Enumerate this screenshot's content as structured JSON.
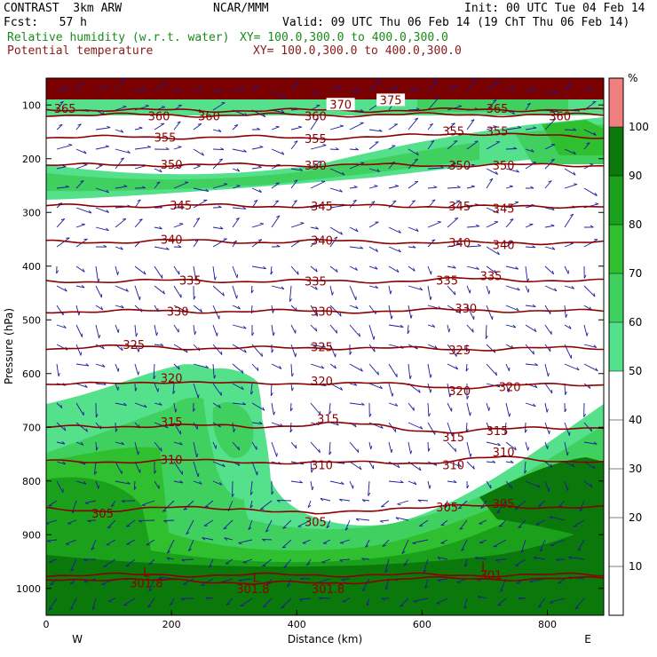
{
  "header": {
    "model": "CONTRAST  3km ARW",
    "org": "NCAR/MMM",
    "init": "Init: 00 UTC Tue 04 Feb 14",
    "fcst": "Fcst:   57 h",
    "valid": "Valid: 09 UTC Thu 06 Feb 14 (19 ChT Thu 06 Feb 14)",
    "field1": "Relative humidity (w.r.t. water)",
    "field1_xy": "XY= 100.0,300.0 to 400.0,300.0",
    "field2": "Potential temperature",
    "field2_xy": "XY= 100.0,300.0 to 400.0,300.0"
  },
  "chart_data": {
    "type": "heatmap",
    "title": "",
    "xlabel": "Distance (km)",
    "ylabel": "Pressure (hPa)",
    "xlim": [
      0,
      890
    ],
    "ylim": [
      1050,
      50
    ],
    "x_ticks": [
      "0",
      "200",
      "400",
      "600",
      "800"
    ],
    "x_tick_values": [
      0,
      200,
      400,
      600,
      800
    ],
    "y_ticks": [
      "100",
      "200",
      "300",
      "400",
      "500",
      "600",
      "700",
      "800",
      "900",
      "1000"
    ],
    "y_tick_values": [
      100,
      200,
      300,
      400,
      500,
      600,
      700,
      800,
      900,
      1000
    ],
    "x_end_labels": {
      "left": "W",
      "right": "E"
    },
    "colorbar": {
      "unit": "%",
      "labels": [
        "10",
        "20",
        "30",
        "40",
        "50",
        "60",
        "70",
        "80",
        "90",
        "100"
      ],
      "bands": [
        {
          "from": 50,
          "to": 60,
          "color": "#55e08c"
        },
        {
          "from": 60,
          "to": 70,
          "color": "#40d060"
        },
        {
          "from": 70,
          "to": 80,
          "color": "#2fbf2f"
        },
        {
          "from": 80,
          "to": 90,
          "color": "#1aa01a"
        },
        {
          "from": 90,
          "to": 100,
          "color": "#0b780b"
        },
        {
          "from": 100,
          "to": 110,
          "color": "#f08080"
        }
      ]
    },
    "theta_contours": [
      {
        "label": "365",
        "pressure": 110,
        "label_x": [
          30,
          720
        ],
        "label_p": [
          106,
          106
        ]
      },
      {
        "label": "360",
        "pressure": 118,
        "label_x": [
          180,
          260,
          430,
          820
        ],
        "label_p": [
          120,
          120,
          120,
          120
        ]
      },
      {
        "label": "355",
        "pressure": 160,
        "label_x": [
          190,
          430,
          650,
          720
        ],
        "label_p": [
          160,
          162,
          148,
          148
        ]
      },
      {
        "label": "350",
        "pressure": 212,
        "label_x": [
          200,
          430,
          660,
          730
        ],
        "label_p": [
          210,
          212,
          212,
          212
        ]
      },
      {
        "label": "345",
        "pressure": 288,
        "label_x": [
          215,
          440,
          660,
          730
        ],
        "label_p": [
          286,
          288,
          288,
          292
        ]
      },
      {
        "label": "340",
        "pressure": 355,
        "label_x": [
          200,
          440,
          660,
          730
        ],
        "label_p": [
          350,
          352,
          356,
          360
        ]
      },
      {
        "label": "335",
        "pressure": 428,
        "label_x": [
          230,
          430,
          640,
          710
        ],
        "label_p": [
          426,
          428,
          426,
          418
        ]
      },
      {
        "label": "330",
        "pressure": 484,
        "label_x": [
          210,
          440,
          670
        ],
        "label_p": [
          484,
          484,
          478
        ]
      },
      {
        "label": "325",
        "pressure": 553,
        "label_x": [
          140,
          440,
          660
        ],
        "label_p": [
          546,
          550,
          556
        ]
      },
      {
        "label": "320",
        "pressure": 620,
        "label_x": [
          200,
          440,
          660,
          740
        ],
        "label_p": [
          608,
          614,
          632,
          624
        ]
      },
      {
        "label": "315",
        "pressure": 700,
        "label_x": [
          200,
          450,
          650,
          720
        ],
        "label_p": [
          690,
          684,
          718,
          706
        ]
      },
      {
        "label": "310",
        "pressure": 764,
        "label_x": [
          200,
          440,
          650,
          730
        ],
        "label_p": [
          760,
          770,
          770,
          746
        ]
      },
      {
        "label": "305",
        "pressure": 850,
        "label_x": [
          90,
          430,
          640,
          730
        ],
        "label_p": [
          860,
          876,
          848,
          842
        ]
      },
      {
        "label": "301.8",
        "pressure": 982,
        "label_x": [
          160,
          330,
          450
        ],
        "label_p": [
          990,
          1000,
          1000
        ]
      },
      {
        "label": "301",
        "pressure": 975,
        "label_x": [
          710
        ],
        "label_p": [
          975
        ]
      }
    ],
    "low_markers": [
      {
        "label": "L",
        "x": 160,
        "p": 970
      },
      {
        "label": "L",
        "x": 335,
        "p": 980
      },
      {
        "label": "L",
        "x": 700,
        "p": 960
      }
    ],
    "top_labels": [
      {
        "label": "370",
        "x": 470,
        "p": 100
      },
      {
        "label": "375",
        "x": 550,
        "p": 92
      }
    ]
  }
}
